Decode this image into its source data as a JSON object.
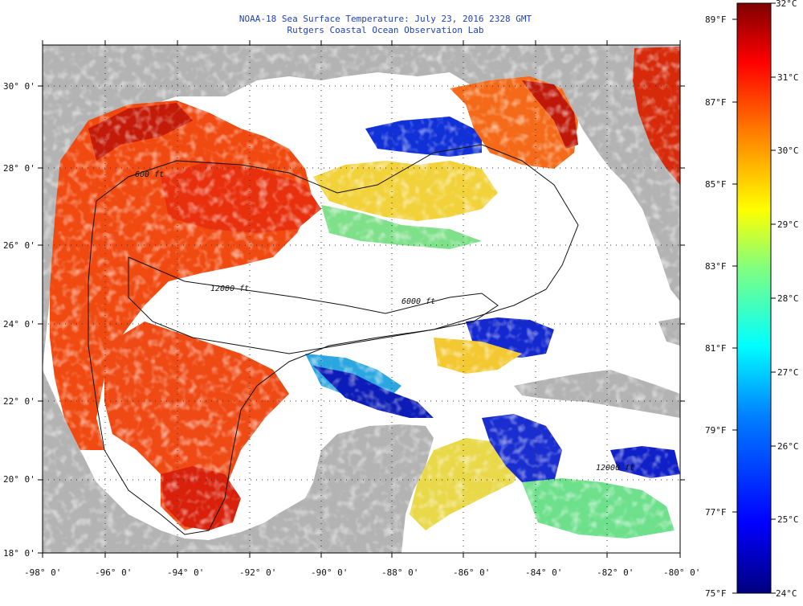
{
  "title": {
    "line1": "NOAA-18 Sea Surface Temperature:  July 23, 2016 2328 GMT",
    "line2": "Rutgers Coastal Ocean Observation Lab"
  },
  "map": {
    "extent": {
      "lon_min": -98,
      "lon_max": -80,
      "lat_min": 18,
      "lat_max": 31
    },
    "land_color": "#b3b3b3",
    "cloud_color": "#ffffff",
    "lat_labels": [
      "18° 0'",
      "20° 0'",
      "22° 0'",
      "24° 0'",
      "26° 0'",
      "28° 0'",
      "30° 0'"
    ],
    "lon_labels": [
      "-98° 0'",
      "-96° 0'",
      "-94° 0'",
      "-92° 0'",
      "-90° 0'",
      "-88° 0'",
      "-86° 0'",
      "-84° 0'",
      "-82° 0'",
      "-80° 0'"
    ],
    "contour_labels": [
      "600 ft",
      "12000 ft",
      "6000 ft",
      "12000 ft"
    ]
  },
  "colorbar": {
    "fahrenheit_labels": [
      "89°F",
      "87°F",
      "85°F",
      "83°F",
      "81°F",
      "79°F",
      "77°F",
      "75°F"
    ],
    "celsius_labels": [
      "32°C",
      "31°C",
      "30°C",
      "29°C",
      "28°C",
      "27°C",
      "26°C",
      "25°C",
      "24°C"
    ],
    "colors": [
      "#00007f",
      "#0000ff",
      "#007fff",
      "#00ffff",
      "#7fff7f",
      "#ffff00",
      "#ff7f00",
      "#ff0000",
      "#7f0000"
    ]
  }
}
